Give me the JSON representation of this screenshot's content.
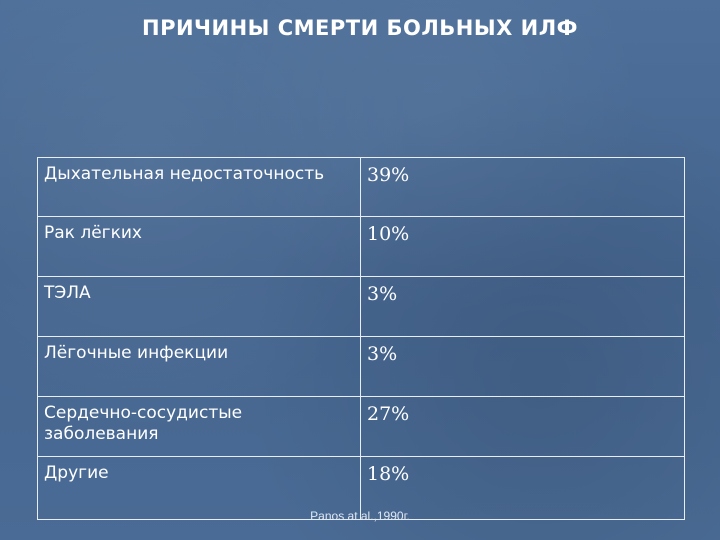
{
  "slide": {
    "title": "ПРИЧИНЫ СМЕРТИ БОЛЬНЫХ ИЛФ",
    "table": {
      "rows": [
        {
          "cause": "Дыхательная недостаточность",
          "percent": "39%"
        },
        {
          "cause": "Рак лёгких",
          "percent": "10%"
        },
        {
          "cause": "ТЭЛА",
          "percent": "3%"
        },
        {
          "cause": "Лёгочные инфекции",
          "percent": "3%"
        },
        {
          "cause": "Сердечно-сосудистые заболевания",
          "percent": "27%"
        },
        {
          "cause": "Другие",
          "percent": "18%"
        }
      ]
    },
    "source": "Panos at al.,1990г."
  },
  "colors": {
    "background": "#4a6b95",
    "text": "#ffffff",
    "table_border": "#e8eef6"
  }
}
